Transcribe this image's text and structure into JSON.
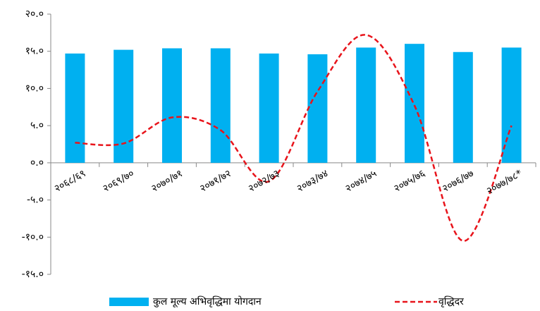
{
  "chart_data": {
    "type": "bar",
    "categories": [
      "२०६८/६९",
      "२०६९/७०",
      "२०७०/७१",
      "२०७१/७२",
      "२०७२/७३",
      "२०७३/७४",
      "२०७४/७५",
      "२०७५/७६",
      "२०७६/७७",
      "२०७७/७८*"
    ],
    "series": [
      {
        "name": "कुल मूल्य अभिवृद्धिमा योगदान",
        "type": "bar",
        "color": "#00b0f0",
        "values": [
          14.7,
          15.2,
          15.4,
          15.4,
          14.7,
          14.6,
          15.5,
          16.0,
          14.9,
          15.5
        ]
      },
      {
        "name": "वृद्धिदर",
        "type": "line",
        "color": "#e8141b",
        "dashed": true,
        "smooth": true,
        "values": [
          2.7,
          2.6,
          6.1,
          4.4,
          -2.5,
          9.6,
          17.2,
          7.7,
          -10.5,
          5.0
        ]
      }
    ],
    "ylim": [
      -15,
      20
    ],
    "yticks": [
      {
        "value": 20,
        "label": "२०.०"
      },
      {
        "value": 15,
        "label": "१५.०"
      },
      {
        "value": 10,
        "label": "१०.०"
      },
      {
        "value": 5,
        "label": "५.०"
      },
      {
        "value": 0,
        "label": "०.०"
      },
      {
        "value": -5,
        "label": "-५.०"
      },
      {
        "value": -10,
        "label": "-१०.०"
      },
      {
        "value": -15,
        "label": "-१५.०"
      }
    ],
    "grid": false,
    "legend": "bottom"
  }
}
